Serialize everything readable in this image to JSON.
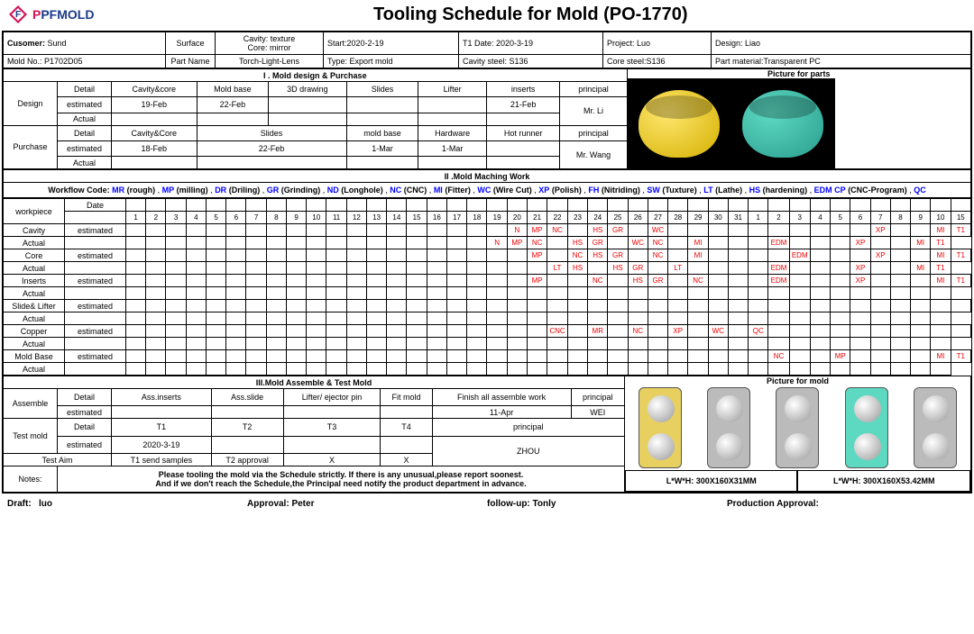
{
  "title": "Tooling Schedule for Mold (PO-1770)",
  "logo": {
    "brand": "PFMOLD",
    "p_color": "#d4145a",
    "f_color": "#1b3a8a"
  },
  "info": {
    "customer_lbl": "Cusomer:",
    "customer": "Sund",
    "surface_lbl": "Surface",
    "cavity_lbl": "Cavity: texture",
    "core_lbl": "Core: mirror",
    "start_lbl": "Start:",
    "start": "2020-2-19",
    "t1_lbl": "T1 Date:",
    "t1": "2020-3-19",
    "project_lbl": "Project:",
    "project": "Luo",
    "design_lbl": "Design:",
    "design": "Liao",
    "moldno_lbl": "Mold No.:",
    "moldno": "P1702D05",
    "partname_lbl": "Part Name",
    "partname": "Torch-Light-Lens",
    "type_lbl": "Type:",
    "type": "Export mold",
    "cavsteel_lbl": "Cavity steel:",
    "cavsteel": "S136",
    "coresteel_lbl": "Core steel:",
    "coresteel": "S136",
    "partmat_lbl": "Part material:",
    "partmat": "Transparent PC"
  },
  "s1": {
    "title": "I . Mold design & Purchase",
    "pic_title": "Picture for parts",
    "design": "Design",
    "purchase": "Purchase",
    "detail": "Detail",
    "estimated": "estimated",
    "actual": "Actual",
    "d_cols": [
      "Cavity&core",
      "Mold base",
      "3D drawing",
      "Slides",
      "Lifter",
      "inserts",
      "principal"
    ],
    "d_est": [
      "19-Feb",
      "22-Feb",
      "",
      "",
      "",
      "21-Feb",
      ""
    ],
    "d_principal": "Mr. Li",
    "p_cols": [
      "Cavity&Core",
      "Slides",
      "mold base",
      "Hardware",
      "Hot runner",
      "principal"
    ],
    "p_est": [
      "18-Feb",
      "22-Feb",
      "1-Mar",
      "1-Mar",
      "",
      ""
    ],
    "p_principal": "Mr. Wang"
  },
  "s2": {
    "title": "II .Mold Maching Work",
    "wf_lbl": "Workflow Code:",
    "codes": [
      [
        "MR",
        "(rough)"
      ],
      [
        "MP",
        "(milling)"
      ],
      [
        "DR",
        "(Driling)"
      ],
      [
        "GR",
        "(Grinding)"
      ],
      [
        "ND",
        "(Longhole)"
      ],
      [
        "NC",
        "(CNC)"
      ],
      [
        "MI",
        "(Fitter)"
      ],
      [
        "WC",
        "(Wire Cut)"
      ],
      [
        "XP",
        "(Polish)"
      ],
      [
        "FH",
        "(Nitriding)"
      ],
      [
        "SW",
        "(Tuxture)"
      ],
      [
        "LT",
        "(Lathe)"
      ],
      [
        "HS",
        "(hardening)"
      ],
      [
        "EDM CP",
        "(CNC-Program)"
      ],
      [
        "QC",
        ""
      ]
    ],
    "date_lbl": "Date",
    "workpiece_lbl": "workpiece",
    "days": [
      "1",
      "2",
      "3",
      "4",
      "5",
      "6",
      "7",
      "8",
      "9",
      "10",
      "11",
      "12",
      "13",
      "14",
      "15",
      "16",
      "17",
      "18",
      "19",
      "20",
      "21",
      "22",
      "23",
      "24",
      "25",
      "26",
      "27",
      "28",
      "29",
      "30",
      "31",
      "1",
      "2",
      "3",
      "4",
      "5",
      "6",
      "7",
      "8",
      "9",
      "10",
      "15"
    ],
    "rows": [
      {
        "name": "Cavity",
        "est": {
          "19": "N",
          "20": "MP",
          "21": "NC",
          "23": "HS",
          "24": "GR",
          "26": "WC",
          "37": "XP",
          "40": "MI",
          "41": "T1"
        },
        "act": {
          "19": "N",
          "20": "MP",
          "21": "NC",
          "23": "HS",
          "24": "GR",
          "26": "WC",
          "27": "NC",
          "29": "MI",
          "33": "EDM",
          "37": "XP",
          "40": "MI",
          "41": "T1"
        }
      },
      {
        "name": "Core",
        "est": {
          "20": "MP",
          "22": "NC",
          "23": "HS",
          "24": "GR",
          "26": "NC",
          "28": "MI",
          "33": "EDM",
          "37": "XP",
          "40": "MI",
          "41": "T1"
        },
        "act": {
          "22": "LT",
          "23": "HS",
          "25": "HS",
          "26": "GR",
          "28": "LT",
          "33": "EDM",
          "37": "XP",
          "40": "MI",
          "41": "T1"
        }
      },
      {
        "name": "Inserts",
        "est": {
          "20": "MP",
          "23": "NC",
          "25": "HS",
          "26": "GR",
          "28": "NC",
          "32": "EDM",
          "36": "XP",
          "40": "MI",
          "41": "T1"
        },
        "act": {}
      },
      {
        "name": "Slide& Lifter",
        "est": {},
        "act": {}
      },
      {
        "name": "Copper",
        "est": {
          "21": "CNC",
          "23": "MR",
          "25": "NC",
          "27": "XP",
          "29": "WC",
          "31": "QC"
        },
        "act": {}
      },
      {
        "name": "Mold Base",
        "est": {
          "32": "NC",
          "35": "MP",
          "40": "MI",
          "41": "T1"
        },
        "act": {}
      }
    ]
  },
  "s3": {
    "title": "III.Mold Assemble & Test Mold",
    "pic_title": "Picture for mold",
    "assemble": "Assemble",
    "testmold": "Test mold",
    "testaim": "Test Aim",
    "a_cols": [
      "Ass.inserts",
      "Ass.slide",
      "Lifter/ ejector pin",
      "Fit mold",
      "Finish all assemble work",
      "principal"
    ],
    "a_est": [
      "",
      "",
      "",
      "",
      "11-Apr",
      ""
    ],
    "a_principal": "WEI",
    "t_cols": [
      "T1",
      "T2",
      "T3",
      "T4",
      "principal"
    ],
    "t_est": [
      "2020-3-19",
      "",
      "",
      "",
      ""
    ],
    "t_principal": "ZHOU",
    "aim": [
      "T1 send samples",
      "T2 approval",
      "X",
      "X"
    ],
    "dim1": "L*W*H: 300X160X31MM",
    "dim2": "L*W*H: 300X160X53.42MM"
  },
  "notes_lbl": "Notes:",
  "notes": "Please tooling the mold via the Schedule strictly. If there is any unusual,please report soonest.\nAnd if we don't reach the Schedule,the Principal need notify the product department in advance.",
  "footer": {
    "draft_lbl": "Draft:",
    "draft": "luo",
    "approval_lbl": "Approval:",
    "approval": "Peter",
    "followup_lbl": "follow-up:",
    "followup": "Tonly",
    "prod_lbl": "Production Approval:"
  }
}
